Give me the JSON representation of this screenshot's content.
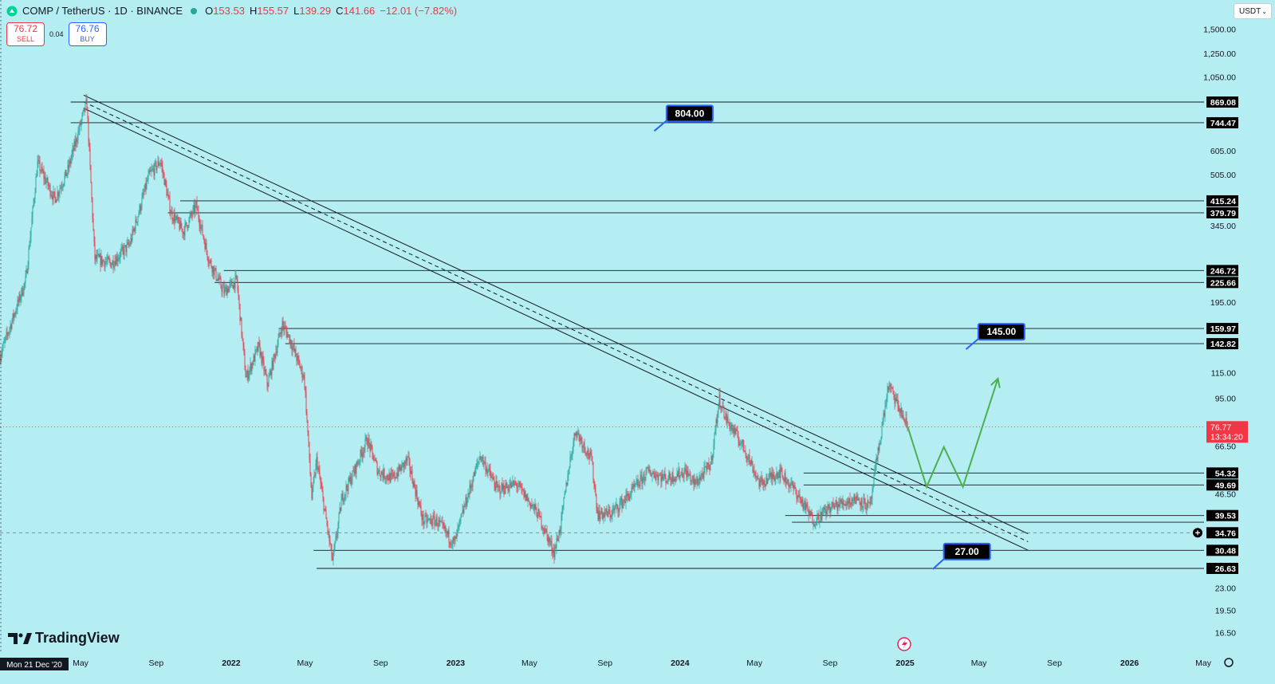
{
  "header": {
    "symbol": "COMP / TetherUS · 1D · BINANCE",
    "o_label": "O",
    "o": "153.53",
    "h_label": "H",
    "h": "155.57",
    "l_label": "L",
    "l": "139.29",
    "c_label": "C",
    "c": "141.66",
    "change": "−12.01 (−7.82%)"
  },
  "trade": {
    "sell_price": "76.72",
    "sell_label": "SELL",
    "spread": "0.04",
    "buy_price": "76.76",
    "buy_label": "BUY"
  },
  "currency": "USDT",
  "brand": "TradingView",
  "colors": {
    "background": "#b4eef3",
    "up": "#26a69a",
    "down": "#f23645",
    "forecast": "#4caf50",
    "callout_border": "#2962ff"
  },
  "chart_data": {
    "type": "candlestick",
    "title": "COMP / TetherUS · 1D · BINANCE",
    "y_scale": "log",
    "ylim": [
      15,
      1650
    ],
    "x_range": [
      "2020-12-21",
      "2026-06-01"
    ],
    "y_ticks": [
      "1,500.00",
      "1,250.00",
      "1,050.00",
      "605.00",
      "505.00",
      "345.00",
      "195.00",
      "115.00",
      "95.00",
      "66.50",
      "46.50",
      "23.00",
      "19.50",
      "16.50"
    ],
    "x_ticks": [
      {
        "date": "2021-05-01",
        "label": "May"
      },
      {
        "date": "2021-09-01",
        "label": "Sep"
      },
      {
        "date": "2022-01-01",
        "label": "2022"
      },
      {
        "date": "2022-05-01",
        "label": "May"
      },
      {
        "date": "2022-09-01",
        "label": "Sep"
      },
      {
        "date": "2023-01-01",
        "label": "2023"
      },
      {
        "date": "2023-05-01",
        "label": "May"
      },
      {
        "date": "2023-09-01",
        "label": "Sep"
      },
      {
        "date": "2024-01-01",
        "label": "2024"
      },
      {
        "date": "2024-05-01",
        "label": "May"
      },
      {
        "date": "2024-09-01",
        "label": "Sep"
      },
      {
        "date": "2025-01-01",
        "label": "2025"
      },
      {
        "date": "2025-05-01",
        "label": "May"
      },
      {
        "date": "2025-09-01",
        "label": "Sep"
      },
      {
        "date": "2026-01-01",
        "label": "2026"
      },
      {
        "date": "2026-05-01",
        "label": "May"
      }
    ],
    "first_date_label": "Mon 21 Dec '20",
    "price_path": [
      [
        "2020-12-21",
        130
      ],
      [
        "2021-02-01",
        230
      ],
      [
        "2021-02-20",
        550
      ],
      [
        "2021-03-20",
        420
      ],
      [
        "2021-04-10",
        520
      ],
      [
        "2021-05-11",
        870
      ],
      [
        "2021-05-24",
        270
      ],
      [
        "2021-06-20",
        260
      ],
      [
        "2021-07-20",
        300
      ],
      [
        "2021-08-20",
        500
      ],
      [
        "2021-09-08",
        560
      ],
      [
        "2021-09-25",
        380
      ],
      [
        "2021-10-15",
        330
      ],
      [
        "2021-11-05",
        400
      ],
      [
        "2021-11-25",
        270
      ],
      [
        "2021-12-20",
        210
      ],
      [
        "2022-01-10",
        230
      ],
      [
        "2022-01-25",
        110
      ],
      [
        "2022-02-15",
        140
      ],
      [
        "2022-03-01",
        105
      ],
      [
        "2022-03-25",
        165
      ],
      [
        "2022-04-05",
        150
      ],
      [
        "2022-04-30",
        110
      ],
      [
        "2022-05-12",
        45
      ],
      [
        "2022-05-20",
        60
      ],
      [
        "2022-06-15",
        28
      ],
      [
        "2022-06-30",
        45
      ],
      [
        "2022-07-20",
        55
      ],
      [
        "2022-08-10",
        70
      ],
      [
        "2022-08-28",
        55
      ],
      [
        "2022-09-20",
        52
      ],
      [
        "2022-10-15",
        60
      ],
      [
        "2022-11-09",
        38
      ],
      [
        "2022-12-01",
        38
      ],
      [
        "2022-12-30",
        32
      ],
      [
        "2023-01-15",
        42
      ],
      [
        "2023-02-10",
        62
      ],
      [
        "2023-03-10",
        48
      ],
      [
        "2023-04-10",
        50
      ],
      [
        "2023-05-15",
        40
      ],
      [
        "2023-06-10",
        30
      ],
      [
        "2023-06-20",
        36
      ],
      [
        "2023-07-05",
        58
      ],
      [
        "2023-07-15",
        75
      ],
      [
        "2023-08-10",
        60
      ],
      [
        "2023-08-20",
        40
      ],
      [
        "2023-09-10",
        40
      ],
      [
        "2023-10-10",
        46
      ],
      [
        "2023-11-10",
        55
      ],
      [
        "2023-12-10",
        52
      ],
      [
        "2024-01-10",
        55
      ],
      [
        "2024-01-25",
        50
      ],
      [
        "2024-02-20",
        58
      ],
      [
        "2024-03-05",
        95
      ],
      [
        "2024-03-15",
        82
      ],
      [
        "2024-04-15",
        65
      ],
      [
        "2024-05-10",
        50
      ],
      [
        "2024-06-10",
        55
      ],
      [
        "2024-07-05",
        48
      ],
      [
        "2024-08-05",
        38
      ],
      [
        "2024-09-01",
        42
      ],
      [
        "2024-10-15",
        45
      ],
      [
        "2024-11-05",
        42
      ],
      [
        "2024-11-15",
        58
      ],
      [
        "2024-12-05",
        105
      ],
      [
        "2024-12-20",
        90
      ],
      [
        "2025-01-05",
        76.77
      ]
    ],
    "forecast_path": [
      [
        "2025-01-05",
        77
      ],
      [
        "2025-02-05",
        49
      ],
      [
        "2025-03-05",
        66
      ],
      [
        "2025-04-05",
        49
      ],
      [
        "2025-06-01",
        110
      ]
    ],
    "trendlines": [
      {
        "style": "solid",
        "from": [
          "2021-05-06",
          915
        ],
        "to": [
          "2025-07-20",
          34.5
        ]
      },
      {
        "style": "dashed",
        "from": [
          "2021-05-06",
          870
        ],
        "to": [
          "2025-07-20",
          32.5
        ]
      },
      {
        "style": "solid",
        "from": [
          "2021-05-06",
          830
        ],
        "to": [
          "2025-07-20",
          30.5
        ]
      }
    ],
    "levels": [
      {
        "value": 869.08,
        "label": "869.08",
        "from": "2021-04-15"
      },
      {
        "value": 744.47,
        "label": "744.47",
        "from": "2021-04-15"
      },
      {
        "value": 415.24,
        "label": "415.24",
        "from": "2021-10-10"
      },
      {
        "value": 379.79,
        "label": "379.79",
        "from": "2021-09-20"
      },
      {
        "value": 246.72,
        "label": "246.72",
        "from": "2021-12-20"
      },
      {
        "value": 225.66,
        "label": "225.66",
        "from": "2021-12-05"
      },
      {
        "value": 159.97,
        "label": "159.97",
        "from": "2022-03-20"
      },
      {
        "value": 142.82,
        "label": "142.82",
        "from": "2022-03-30"
      },
      {
        "value": 54.32,
        "label": "54.32",
        "from": "2024-07-20"
      },
      {
        "value": 49.69,
        "label": "49.69",
        "from": "2024-07-20"
      },
      {
        "value": 39.53,
        "label": "39.53",
        "from": "2024-06-20"
      },
      {
        "value": 37.6,
        "label": "",
        "from": "2024-07-01"
      },
      {
        "value": 30.48,
        "label": "30.48",
        "from": "2022-05-15"
      },
      {
        "value": 26.63,
        "label": "26.63",
        "from": "2022-05-20"
      }
    ],
    "current_price": {
      "value": 76.77,
      "label": "76.77",
      "countdown": "13:34:20"
    },
    "crosshair": {
      "value": 34.76,
      "label": "34.76"
    },
    "callouts": [
      {
        "label": "804.00",
        "pointer_date": "2023-11-20",
        "pointer_price": 700,
        "box_date": "2023-12-10"
      },
      {
        "label": "145.00",
        "pointer_date": "2025-04-10",
        "pointer_price": 137,
        "box_date": "2025-04-30"
      },
      {
        "label": "27.00",
        "pointer_date": "2025-02-15",
        "pointer_price": 26.5,
        "box_date": "2025-03-05"
      }
    ]
  }
}
